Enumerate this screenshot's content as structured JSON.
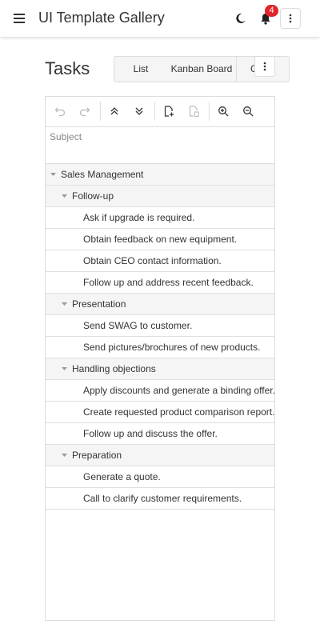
{
  "app": {
    "title": "UI Template Gallery",
    "notification_count": "4"
  },
  "page": {
    "title": "Tasks"
  },
  "tabs": [
    "List",
    "Kanban Board",
    "Gantt"
  ],
  "grid": {
    "column_header": "Subject",
    "groups": [
      {
        "label": "Sales Management",
        "subgroups": [
          {
            "label": "Follow-up",
            "tasks": [
              "Ask if upgrade is required.",
              "Obtain feedback on new equipment.",
              "Obtain CEO contact information.",
              "Follow up and address recent feedback."
            ]
          },
          {
            "label": "Presentation",
            "tasks": [
              "Send SWAG to customer.",
              "Send pictures/brochures of new products."
            ]
          },
          {
            "label": "Handling objections",
            "tasks": [
              "Apply discounts and generate a binding offer.",
              "Create requested product comparison report.",
              "Follow up and discuss the offer."
            ]
          },
          {
            "label": "Preparation",
            "tasks": [
              "Generate a quote.",
              "Call to clarify customer requirements."
            ]
          }
        ]
      }
    ]
  },
  "icons": {
    "menu": "menu-icon",
    "theme": "moon-icon",
    "notifications": "bell-icon",
    "more": "more-vertical-icon",
    "toolbar": [
      "undo-icon",
      "redo-icon",
      "collapse-all-icon",
      "expand-all-icon",
      "add-task-icon",
      "delete-task-icon",
      "zoom-in-icon",
      "zoom-out-icon"
    ]
  },
  "colors": {
    "badge": "#e3242b",
    "group_row": "#f5f5f5",
    "border": "#dddddd"
  }
}
